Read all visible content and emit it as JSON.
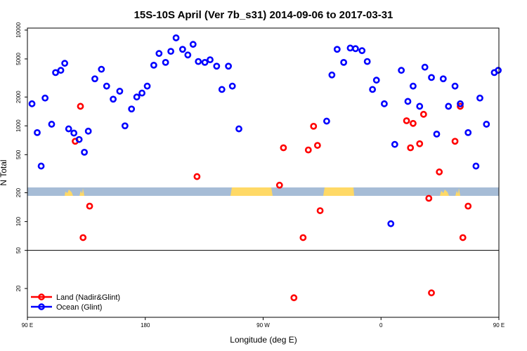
{
  "chart_data": {
    "type": "scatter",
    "title": "15S-10S April (Ver 7b_s31)   2014-09-06 to 2017-03-31",
    "xlabel": "Longitude (deg E)",
    "ylabel": "N Total",
    "y_scale": "log",
    "xlim": [
      90,
      450
    ],
    "ylim": [
      10,
      10500
    ],
    "x_ticks": [
      {
        "value": 90,
        "label": "90 E"
      },
      {
        "value": 180,
        "label": "180"
      },
      {
        "value": 270,
        "label": "90 W"
      },
      {
        "value": 360,
        "label": "0"
      },
      {
        "value": 450,
        "label": "90 E"
      },
      {
        "value": 540,
        "label": "180"
      }
    ],
    "y_ticks": [
      {
        "value": 20,
        "label": "20"
      },
      {
        "value": 50,
        "label": "50"
      },
      {
        "value": 100,
        "label": "100"
      },
      {
        "value": 200,
        "label": "200"
      },
      {
        "value": 500,
        "label": "500"
      },
      {
        "value": 1000,
        "label": "1000"
      },
      {
        "value": 2000,
        "label": "2000"
      },
      {
        "value": 5000,
        "label": "5000"
      },
      {
        "value": 10000,
        "label": "10000"
      }
    ],
    "reference_line": 50,
    "grid": false,
    "legend_position": "bottom-left",
    "series": [
      {
        "name": "Land (Nadir&Glint)",
        "color": "#ff0000",
        "points": [
          [
            126.5,
            690
          ],
          [
            130.5,
            1600
          ],
          [
            132.5,
            68
          ],
          [
            137.5,
            145
          ],
          [
            219.5,
            295
          ],
          [
            282.5,
            240
          ],
          [
            285.5,
            590
          ],
          [
            293.5,
            16
          ],
          [
            300.5,
            68
          ],
          [
            304.5,
            560
          ],
          [
            308.5,
            990
          ],
          [
            311.5,
            625
          ],
          [
            313.5,
            130
          ],
          [
            379.5,
            1130
          ],
          [
            382.5,
            590
          ],
          [
            384.5,
            1060
          ],
          [
            389.5,
            650
          ],
          [
            392.5,
            1320
          ],
          [
            396.5,
            175
          ],
          [
            398.5,
            18
          ],
          [
            404.5,
            330
          ],
          [
            416.5,
            690
          ],
          [
            420.5,
            1600
          ],
          [
            422.5,
            68
          ],
          [
            426.5,
            145
          ]
        ]
      },
      {
        "name": "Ocean (Glint)",
        "color": "#0000ff",
        "points": [
          [
            93.5,
            1700
          ],
          [
            97.5,
            850
          ],
          [
            100.5,
            380
          ],
          [
            103.5,
            1950
          ],
          [
            108.5,
            1040
          ],
          [
            111.5,
            3600
          ],
          [
            115.5,
            3800
          ],
          [
            118.5,
            4500
          ],
          [
            121.5,
            930
          ],
          [
            125.5,
            840
          ],
          [
            129.5,
            720
          ],
          [
            133.5,
            530
          ],
          [
            136.5,
            880
          ],
          [
            141.5,
            3100
          ],
          [
            146.5,
            3900
          ],
          [
            150.5,
            2600
          ],
          [
            155.5,
            1900
          ],
          [
            160.5,
            2300
          ],
          [
            164.5,
            1000
          ],
          [
            169.5,
            1500
          ],
          [
            173.5,
            2000
          ],
          [
            177.5,
            2200
          ],
          [
            181.5,
            2600
          ],
          [
            186.5,
            4300
          ],
          [
            190.5,
            5700
          ],
          [
            195.5,
            4600
          ],
          [
            199.5,
            6000
          ],
          [
            203.5,
            8300
          ],
          [
            208.5,
            6300
          ],
          [
            212.5,
            5500
          ],
          [
            216.5,
            7100
          ],
          [
            220.5,
            4700
          ],
          [
            225.5,
            4600
          ],
          [
            229.5,
            4900
          ],
          [
            234.5,
            4200
          ],
          [
            238.5,
            2400
          ],
          [
            243.5,
            4200
          ],
          [
            246.5,
            2600
          ],
          [
            251.5,
            930
          ],
          [
            318.5,
            1120
          ],
          [
            322.5,
            3400
          ],
          [
            326.5,
            6300
          ],
          [
            331.5,
            4600
          ],
          [
            336.5,
            6500
          ],
          [
            340.5,
            6400
          ],
          [
            345.5,
            6100
          ],
          [
            349.5,
            4700
          ],
          [
            353.5,
            2400
          ],
          [
            356.5,
            3000
          ],
          [
            362.5,
            1700
          ],
          [
            367.5,
            95
          ],
          [
            370.5,
            640
          ],
          [
            375.5,
            3800
          ],
          [
            380.5,
            1800
          ],
          [
            384.5,
            2600
          ],
          [
            389.5,
            1600
          ],
          [
            393.5,
            4100
          ],
          [
            398.5,
            3200
          ],
          [
            402.5,
            820
          ],
          [
            407.5,
            3100
          ],
          [
            411.5,
            1600
          ],
          [
            416.5,
            2600
          ],
          [
            420.5,
            1700
          ],
          [
            426.5,
            850
          ],
          [
            432.5,
            380
          ],
          [
            435.5,
            1950
          ],
          [
            440.5,
            1040
          ],
          [
            446.5,
            3600
          ],
          [
            449.5,
            3800
          ]
        ]
      }
    ]
  },
  "colors": {
    "land_band": "#ffd966",
    "ocean_band": "#a6bcd6"
  }
}
